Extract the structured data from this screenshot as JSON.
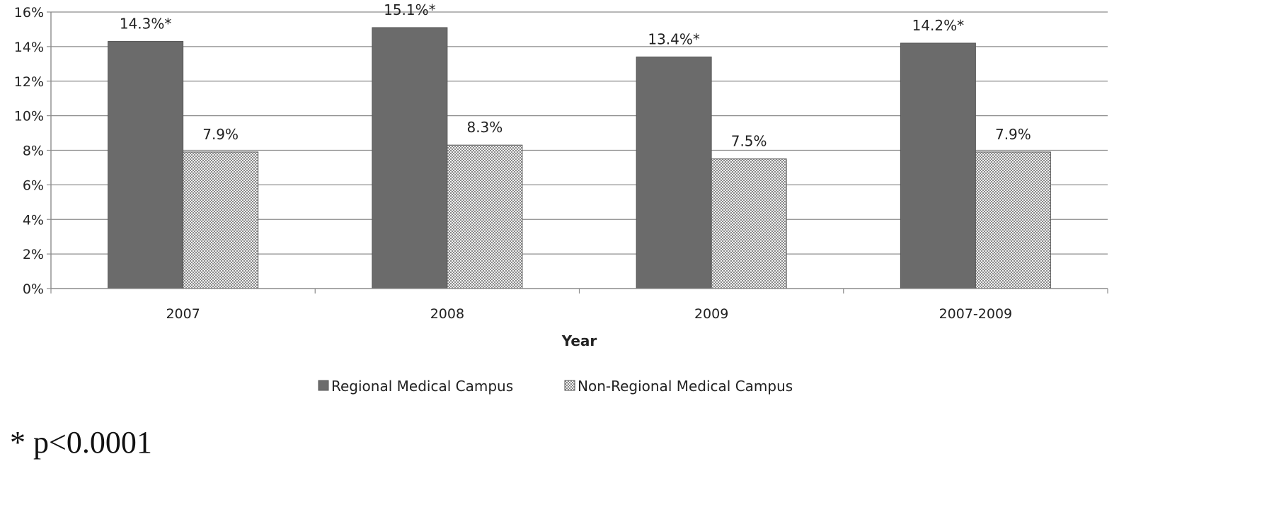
{
  "chart_data": {
    "type": "bar",
    "categories": [
      "2007",
      "2008",
      "2009",
      "2007-2009"
    ],
    "series": [
      {
        "name": "Regional Medical Campus",
        "values": [
          14.3,
          15.1,
          13.4,
          14.2
        ],
        "labels": [
          "14.3%*",
          "15.1%*",
          "13.4%*",
          "14.2%*"
        ],
        "color": "#6b6b6b",
        "pattern": "solid"
      },
      {
        "name": "Non-Regional Medical Campus",
        "values": [
          7.9,
          8.3,
          7.5,
          7.9
        ],
        "labels": [
          "7.9%",
          "8.3%",
          "7.5%",
          "7.9%"
        ],
        "color": "#d8d8d8",
        "pattern": "dotted"
      }
    ],
    "xlabel": "Year",
    "ylabel": "",
    "ylim": [
      0,
      16
    ],
    "yticks": [
      0,
      2,
      4,
      6,
      8,
      10,
      12,
      14,
      16
    ],
    "ytick_labels": [
      "0%",
      "2%",
      "4%",
      "6%",
      "8%",
      "10%",
      "12%",
      "14%",
      "16%"
    ],
    "grid": true,
    "legend_position": "bottom",
    "footnote": "* p<0.0001"
  }
}
